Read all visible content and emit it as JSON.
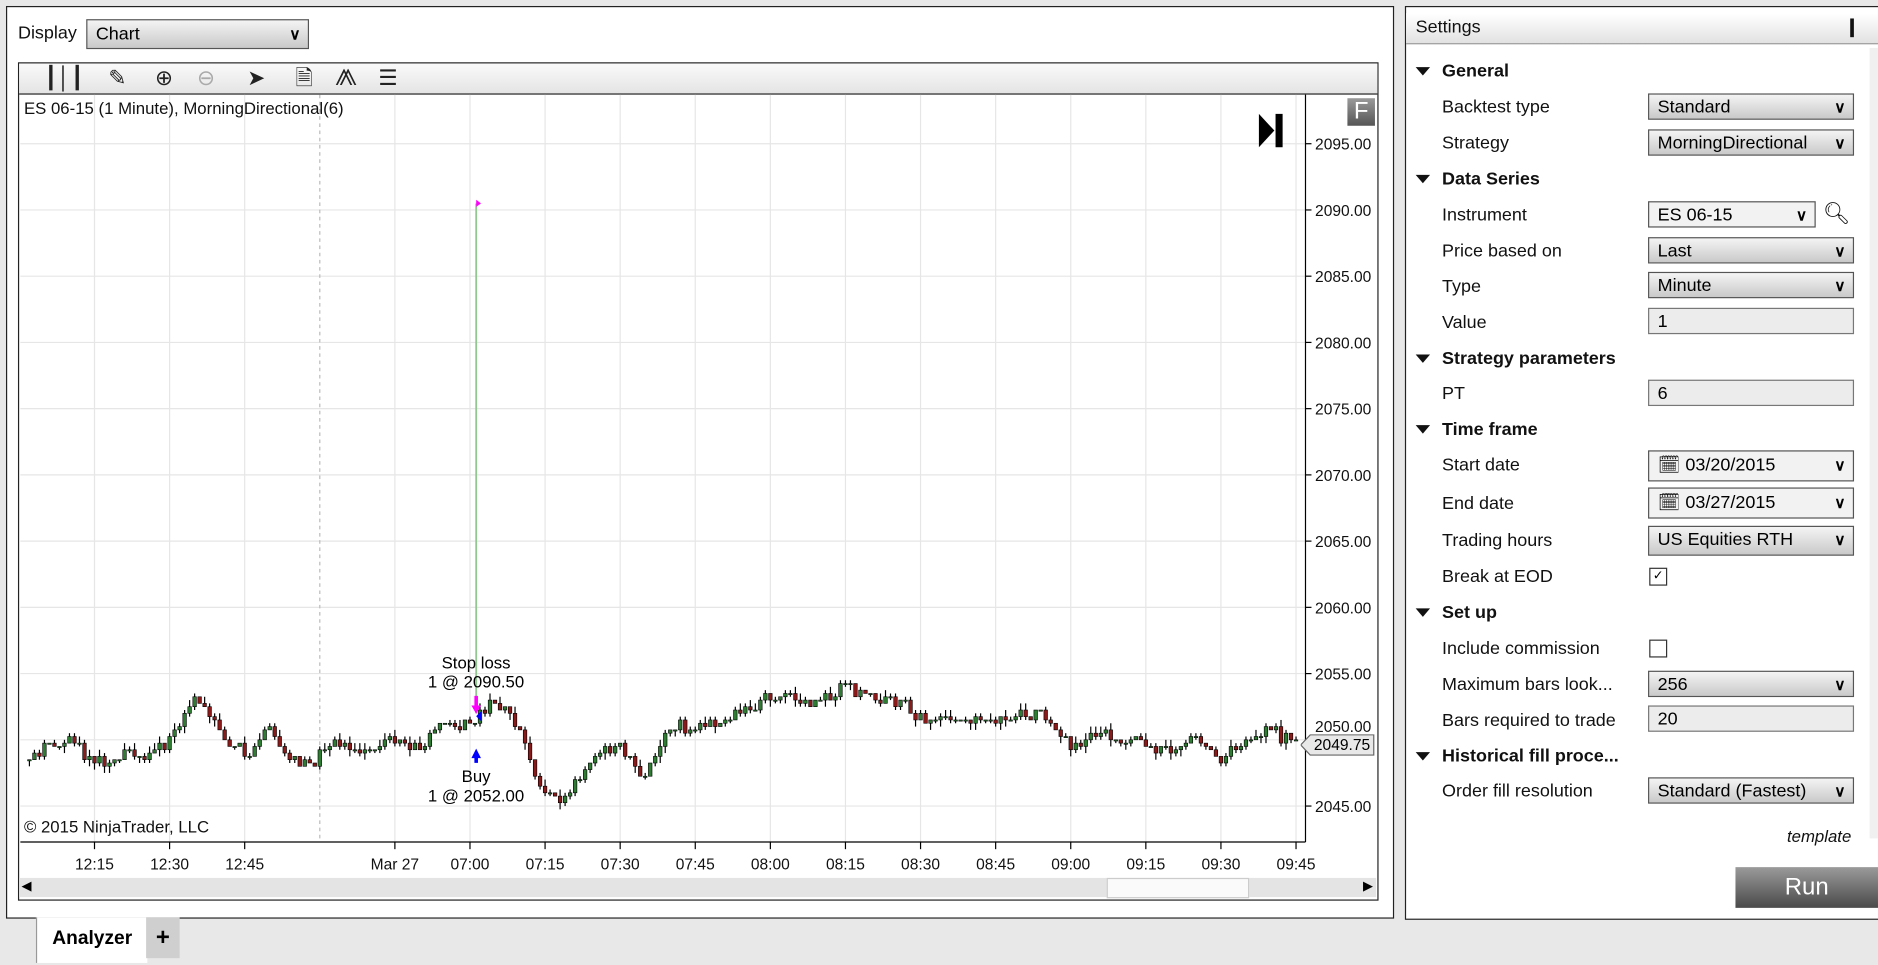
{
  "display": {
    "label": "Display",
    "value": "Chart"
  },
  "toolbar": {
    "icons": [
      "bar-type-icon",
      "pencil-icon",
      "zoom-in-icon",
      "zoom-out-icon",
      "pointer-icon",
      "data-box-icon",
      "indicators-icon",
      "properties-icon"
    ]
  },
  "chart": {
    "title": "ES 06-15 (1 Minute), MorningDirectional(6)",
    "copyright": "© 2015 NinjaTrader, LLC",
    "f_badge": "F",
    "last_price_label": "2049.75",
    "stop_loss": {
      "line1": "Stop loss",
      "line2": "1 @ 2090.50"
    },
    "buy": {
      "line1": "Buy",
      "line2": "1 @ 2052.00"
    },
    "colors": {
      "up": "#2e7d32",
      "down": "#8b1a1a",
      "buy": "#0000ff",
      "stop": "#ff00ff",
      "trade_line": "#90c890"
    }
  },
  "chart_data": {
    "type": "candlestick",
    "price_ticks": [
      "2095.00",
      "2090.00",
      "2085.00",
      "2080.00",
      "2075.00",
      "2070.00",
      "2065.00",
      "2060.00",
      "2055.00",
      "2050.00",
      "2045.00"
    ],
    "time_ticks": [
      "12:15",
      "12:30",
      "12:45",
      "Mar 27",
      "07:00",
      "07:15",
      "07:30",
      "07:45",
      "08:00",
      "08:15",
      "08:30",
      "08:45",
      "09:00",
      "09:15",
      "09:30",
      "09:45"
    ],
    "ylim": [
      2044,
      2097
    ],
    "grid": true,
    "sessions": [
      {
        "start": "12:02",
        "end": "13:00",
        "closes": [
          [
            "12:02",
            2048.9
          ],
          [
            "12:10",
            2049.8
          ],
          [
            "12:15",
            2048.4
          ],
          [
            "12:25",
            2049.0
          ],
          [
            "12:30",
            2049.8
          ],
          [
            "12:35",
            2053.4
          ],
          [
            "12:40",
            2050.7
          ],
          [
            "12:45",
            2048.9
          ],
          [
            "12:50",
            2050.5
          ],
          [
            "12:55",
            2048.4
          ],
          [
            "13:00",
            2047.5
          ]
        ]
      },
      {
        "start": "06:30",
        "end": "09:45",
        "closes": [
          [
            "06:30",
            2049.8
          ],
          [
            "06:40",
            2048.9
          ],
          [
            "06:45",
            2050.2
          ],
          [
            "06:50",
            2049.3
          ],
          [
            "06:55",
            2051.1
          ],
          [
            "07:00",
            2051.1
          ],
          [
            "07:05",
            2053.0
          ],
          [
            "07:10",
            2051.0
          ],
          [
            "07:13",
            2047.0
          ],
          [
            "07:18",
            2045.3
          ],
          [
            "07:25",
            2048.9
          ],
          [
            "07:30",
            2049.3
          ],
          [
            "07:35",
            2047.0
          ],
          [
            "07:40",
            2051.1
          ],
          [
            "07:45",
            2051.1
          ],
          [
            "07:50",
            2051.6
          ],
          [
            "07:55",
            2052.5
          ],
          [
            "08:00",
            2053.4
          ],
          [
            "08:05",
            2053.0
          ],
          [
            "08:10",
            2053.0
          ],
          [
            "08:15",
            2054.1
          ],
          [
            "08:20",
            2053.4
          ],
          [
            "08:25",
            2053.0
          ],
          [
            "08:30",
            2051.6
          ],
          [
            "08:35",
            2051.6
          ],
          [
            "08:40",
            2051.6
          ],
          [
            "08:45",
            2051.8
          ],
          [
            "08:50",
            2052.0
          ],
          [
            "08:55",
            2051.8
          ],
          [
            "09:00",
            2049.3
          ],
          [
            "09:05",
            2050.5
          ],
          [
            "09:10",
            2050.2
          ],
          [
            "09:15",
            2049.8
          ],
          [
            "09:20",
            2048.9
          ],
          [
            "09:25",
            2050.2
          ],
          [
            "09:30",
            2048.4
          ],
          [
            "09:35",
            2049.8
          ],
          [
            "09:40",
            2050.7
          ],
          [
            "09:45",
            2049.75
          ]
        ]
      }
    ],
    "trades": [
      {
        "entry_time": "07:01",
        "entry_price": 2052.0,
        "exit_time": "07:01",
        "exit_price": 2090.5
      }
    ],
    "last_price": 2049.75
  },
  "settings": {
    "title": "Settings",
    "sections": {
      "general": "General",
      "data_series": "Data Series",
      "strategy_parameters": "Strategy parameters",
      "time_frame": "Time frame",
      "set_up": "Set up",
      "historical_fill": "Historical fill proce..."
    },
    "fields": {
      "backtest_type": {
        "label": "Backtest type",
        "value": "Standard"
      },
      "strategy": {
        "label": "Strategy",
        "value": "MorningDirectional"
      },
      "instrument": {
        "label": "Instrument",
        "value": "ES 06-15"
      },
      "price_based_on": {
        "label": "Price based on",
        "value": "Last"
      },
      "type": {
        "label": "Type",
        "value": "Minute"
      },
      "value": {
        "label": "Value",
        "value": "1"
      },
      "pt": {
        "label": "PT",
        "value": "6"
      },
      "start_date": {
        "label": "Start date",
        "value": "03/20/2015"
      },
      "end_date": {
        "label": "End date",
        "value": "03/27/2015"
      },
      "trading_hours": {
        "label": "Trading hours",
        "value": "US Equities RTH"
      },
      "break_at_eod": {
        "label": "Break at EOD",
        "checked": true,
        "mark": "✓"
      },
      "include_commission": {
        "label": "Include commission",
        "checked": false
      },
      "max_bars": {
        "label": "Maximum bars look...",
        "value": "256"
      },
      "bars_required": {
        "label": "Bars required to trade",
        "value": "20"
      },
      "order_fill": {
        "label": "Order fill resolution",
        "value": "Standard (Fastest)"
      }
    },
    "template_link": "template",
    "run_button": "Run"
  },
  "tabs": {
    "active": "Analyzer",
    "add": "+"
  }
}
